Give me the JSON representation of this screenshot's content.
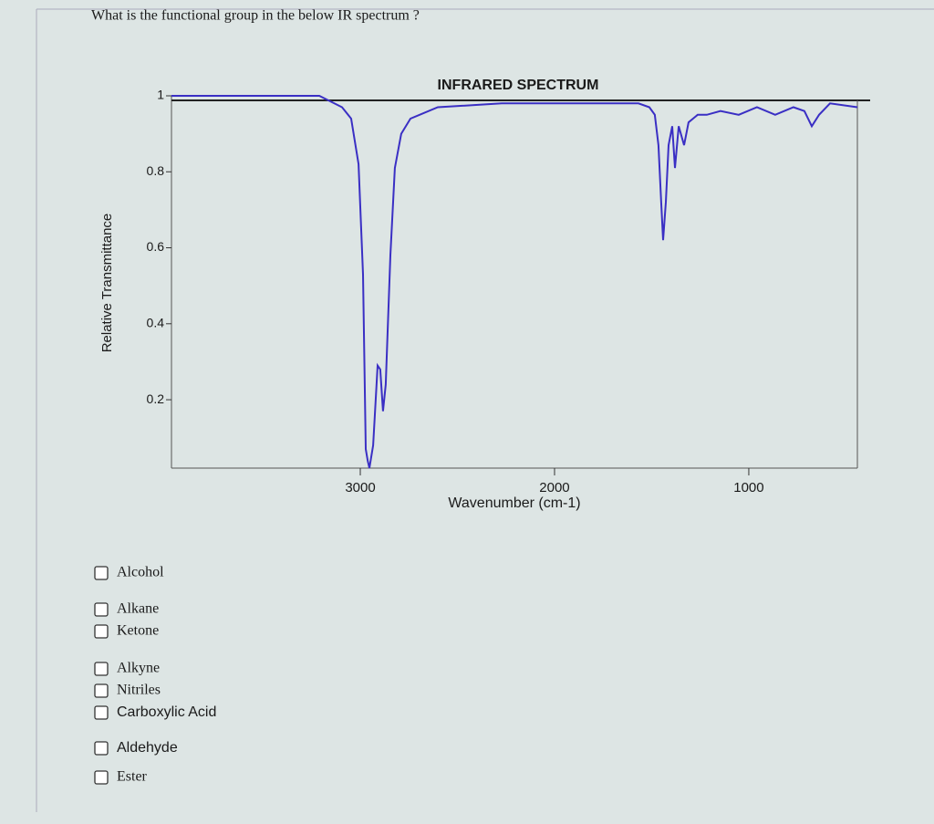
{
  "question": "What is the functional group in the below IR spectrum ?",
  "chart_data": {
    "type": "line",
    "title": "INFRARED SPECTRUM",
    "x_label": "Wavenumber (cm-1)",
    "y_label": "Relative Transmittance",
    "color": "#3a2fc4",
    "x": [
      3972,
      3211,
      3094,
      3047,
      3009,
      2986,
      2972,
      2962,
      2953,
      2934,
      2911,
      2897,
      2883,
      2869,
      2845,
      2822,
      2789,
      2742,
      2601,
      2272,
      1568,
      1512,
      1484,
      1465,
      1451,
      1441,
      1427,
      1413,
      1394,
      1380,
      1361,
      1333,
      1310,
      1263,
      1216,
      1146,
      1052,
      958,
      864,
      770,
      714,
      676,
      638,
      582,
      441
    ],
    "values": [
      1.0,
      1.0,
      0.97,
      0.94,
      0.82,
      0.53,
      0.07,
      0.04,
      0.02,
      0.08,
      0.29,
      0.28,
      0.17,
      0.24,
      0.58,
      0.81,
      0.9,
      0.94,
      0.97,
      0.98,
      0.98,
      0.97,
      0.95,
      0.87,
      0.72,
      0.62,
      0.72,
      0.87,
      0.92,
      0.81,
      0.92,
      0.87,
      0.93,
      0.95,
      0.95,
      0.96,
      0.95,
      0.97,
      0.95,
      0.97,
      0.96,
      0.92,
      0.95,
      0.98,
      0.97
    ],
    "xlim": [
      3972,
      441
    ],
    "ylim": [
      0.02,
      1
    ],
    "xticks": [
      3000,
      2000,
      1000
    ],
    "yticks": [
      0.2,
      0.4,
      0.6,
      0.8,
      1
    ]
  },
  "options": [
    "Alcohol",
    "Alkane",
    "Ketone",
    "Alkyne",
    "Nitriles",
    "Carboxylic Acid",
    "Aldehyde",
    "Ester"
  ]
}
